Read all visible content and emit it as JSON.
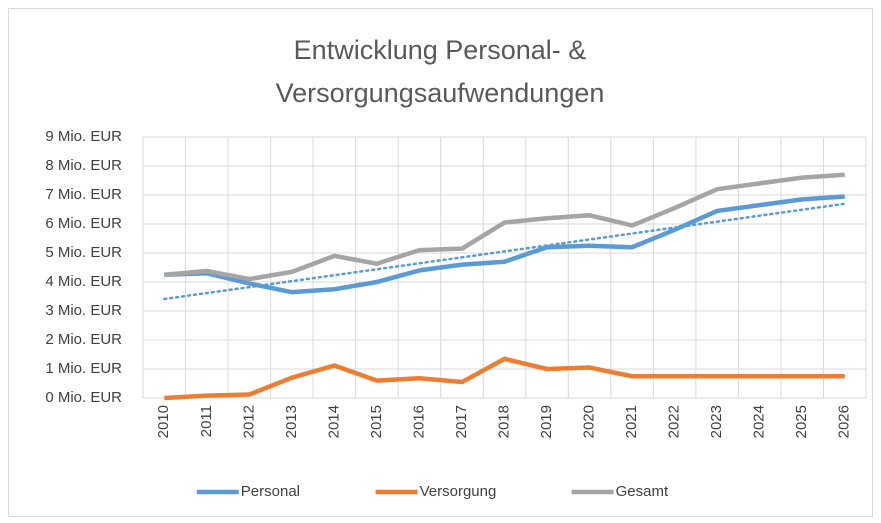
{
  "chart_data": {
    "type": "line",
    "title": [
      "Entwicklung Personal- &",
      "Versorgungsaufwendungen"
    ],
    "categories": [
      "2010",
      "2011",
      "2012",
      "2013",
      "2014",
      "2015",
      "2016",
      "2017",
      "2018",
      "2019",
      "2020",
      "2021",
      "2022",
      "2023",
      "2024",
      "2025",
      "2026"
    ],
    "series": [
      {
        "name": "Personal",
        "color": "#5b9bd5",
        "trendline": "linear",
        "values": [
          4.25,
          4.3,
          3.95,
          3.65,
          3.75,
          4.0,
          4.4,
          4.6,
          4.7,
          5.2,
          5.25,
          5.2,
          5.8,
          6.45,
          6.65,
          6.85,
          6.95
        ]
      },
      {
        "name": "Versorgung",
        "color": "#ed7d31",
        "values": [
          0,
          0.08,
          0.12,
          0.7,
          1.12,
          0.6,
          0.68,
          0.55,
          1.35,
          1.0,
          1.05,
          0.75,
          0.75,
          0.75,
          0.75,
          0.75,
          0.75
        ]
      },
      {
        "name": "Gesamt",
        "color": "#a5a5a5",
        "values": [
          4.25,
          4.38,
          4.1,
          4.35,
          4.9,
          4.63,
          5.1,
          5.15,
          6.05,
          6.2,
          6.3,
          5.95,
          6.55,
          7.2,
          7.4,
          7.6,
          7.7
        ]
      }
    ],
    "ylim": [
      0,
      9
    ],
    "yticks": [
      {
        "value": 0,
        "label": "0 Mio. EUR"
      },
      {
        "value": 1,
        "label": "1 Mio. EUR"
      },
      {
        "value": 2,
        "label": "2 Mio. EUR"
      },
      {
        "value": 3,
        "label": "3 Mio. EUR"
      },
      {
        "value": 4,
        "label": "4 Mio. EUR"
      },
      {
        "value": 5,
        "label": "5 Mio. EUR"
      },
      {
        "value": 6,
        "label": "6 Mio. EUR"
      },
      {
        "value": 7,
        "label": "7 Mio. EUR"
      },
      {
        "value": 8,
        "label": "8 Mio. EUR"
      },
      {
        "value": 9,
        "label": "9 Mio. EUR"
      }
    ],
    "grid": true,
    "legend": "bottom"
  }
}
